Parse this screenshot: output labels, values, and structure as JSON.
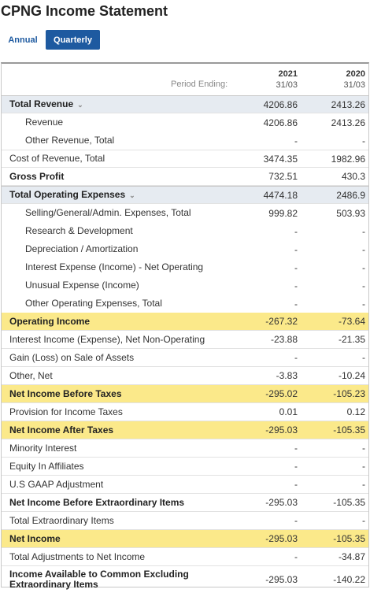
{
  "title": "CPNG Income Statement",
  "tabs": {
    "annual": "Annual",
    "quarterly": "Quarterly"
  },
  "header": {
    "period_label": "Period Ending:",
    "col1_year": "2021",
    "col1_date": "31/03",
    "col2_year": "2020",
    "col2_date": "31/03"
  },
  "rows": [
    {
      "label": "Total Revenue",
      "v1": "4206.86",
      "v2": "2413.26"
    },
    {
      "label": "Revenue",
      "v1": "4206.86",
      "v2": "2413.26"
    },
    {
      "label": "Other Revenue, Total",
      "v1": "-",
      "v2": "-"
    },
    {
      "label": "Cost of Revenue, Total",
      "v1": "3474.35",
      "v2": "1982.96"
    },
    {
      "label": "Gross Profit",
      "v1": "732.51",
      "v2": "430.3"
    },
    {
      "label": "Total Operating Expenses",
      "v1": "4474.18",
      "v2": "2486.9"
    },
    {
      "label": "Selling/General/Admin. Expenses, Total",
      "v1": "999.82",
      "v2": "503.93"
    },
    {
      "label": "Research & Development",
      "v1": "-",
      "v2": "-"
    },
    {
      "label": "Depreciation / Amortization",
      "v1": "-",
      "v2": "-"
    },
    {
      "label": "Interest Expense (Income) - Net Operating",
      "v1": "-",
      "v2": "-"
    },
    {
      "label": "Unusual Expense (Income)",
      "v1": "-",
      "v2": "-"
    },
    {
      "label": "Other Operating Expenses, Total",
      "v1": "-",
      "v2": "-"
    },
    {
      "label": "Operating Income",
      "v1": "-267.32",
      "v2": "-73.64"
    },
    {
      "label": "Interest Income (Expense), Net Non-Operating",
      "v1": "-23.88",
      "v2": "-21.35"
    },
    {
      "label": "Gain (Loss) on Sale of Assets",
      "v1": "-",
      "v2": "-"
    },
    {
      "label": "Other, Net",
      "v1": "-3.83",
      "v2": "-10.24"
    },
    {
      "label": "Net Income Before Taxes",
      "v1": "-295.02",
      "v2": "-105.23"
    },
    {
      "label": "Provision for Income Taxes",
      "v1": "0.01",
      "v2": "0.12"
    },
    {
      "label": "Net Income After Taxes",
      "v1": "-295.03",
      "v2": "-105.35"
    },
    {
      "label": "Minority Interest",
      "v1": "-",
      "v2": "-"
    },
    {
      "label": "Equity In Affiliates",
      "v1": "-",
      "v2": "-"
    },
    {
      "label": "U.S GAAP Adjustment",
      "v1": "-",
      "v2": "-"
    },
    {
      "label": "Net Income Before Extraordinary Items",
      "v1": "-295.03",
      "v2": "-105.35"
    },
    {
      "label": "Total Extraordinary Items",
      "v1": "-",
      "v2": "-"
    },
    {
      "label": "Net Income",
      "v1": "-295.03",
      "v2": "-105.35"
    },
    {
      "label": "Total Adjustments to Net Income",
      "v1": "-",
      "v2": "-34.87"
    },
    {
      "label": "Income Available to Common Excluding Extraordinary Items",
      "v1": "-295.03",
      "v2": "-140.22"
    }
  ]
}
